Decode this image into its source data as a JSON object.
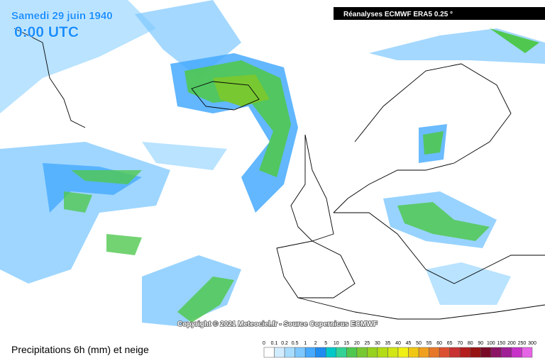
{
  "header": {
    "date": "Samedi 29 juin 1940",
    "time": "0:00 UTC",
    "source": "Réanalyses ECMWF ERA5 0.25 °"
  },
  "copyright": "Copyright © 2021 Meteociel.fr - Source Copernicus ECMWF",
  "legend": {
    "title": "Precipitations 6h (mm) et neige",
    "labels": [
      "0",
      "0.1",
      "0.2",
      "0.5",
      "1",
      "2",
      "5",
      "10",
      "15",
      "20",
      "25",
      "30",
      "35",
      "40",
      "45",
      "50",
      "55",
      "60",
      "65",
      "70",
      "80",
      "90",
      "100",
      "150",
      "200",
      "250",
      "300"
    ],
    "colors": [
      "#ffffff",
      "#d2ecff",
      "#a8dcff",
      "#7ec8ff",
      "#46aaff",
      "#1e8cf0",
      "#00c8c8",
      "#32d296",
      "#50c850",
      "#78c832",
      "#96d21e",
      "#b4dc14",
      "#d2e614",
      "#f0f014",
      "#f0c814",
      "#f0a01e",
      "#e67828",
      "#dc5032",
      "#c83232",
      "#b41e1e",
      "#961414",
      "#780a28",
      "#8c1464",
      "#a01e96",
      "#c832c8",
      "#e664e6"
    ]
  }
}
